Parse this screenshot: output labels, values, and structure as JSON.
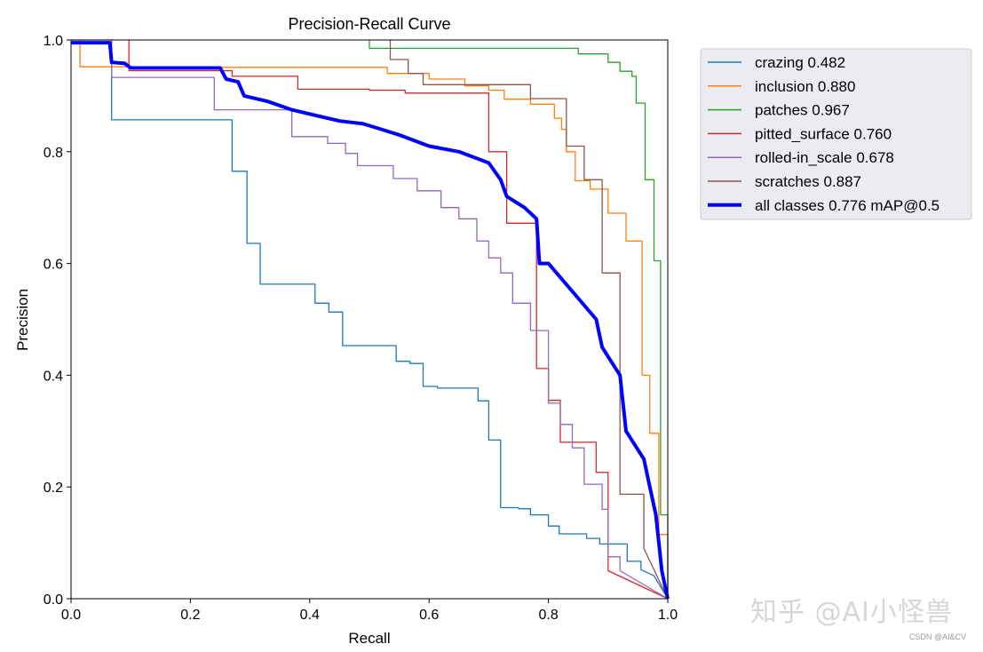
{
  "chart_data": {
    "type": "line",
    "title": "Precision-Recall Curve",
    "xlabel": "Recall",
    "ylabel": "Precision",
    "xlim": [
      0.0,
      1.0
    ],
    "ylim": [
      0.0,
      1.0
    ],
    "xticks": [
      "0.0",
      "0.2",
      "0.4",
      "0.6",
      "0.8",
      "1.0"
    ],
    "yticks": [
      "0.0",
      "0.2",
      "0.4",
      "0.6",
      "0.8",
      "1.0"
    ],
    "grid": false,
    "legend_position": "outside-right-top",
    "series": [
      {
        "name": "crazing 0.482",
        "color": "#1f77b4",
        "points": [
          [
            0,
            1.0
          ],
          [
            0.068,
            1.0
          ],
          [
            0.068,
            0.857
          ],
          [
            0.27,
            0.857
          ],
          [
            0.27,
            0.765
          ],
          [
            0.295,
            0.765
          ],
          [
            0.295,
            0.636
          ],
          [
            0.317,
            0.636
          ],
          [
            0.317,
            0.563
          ],
          [
            0.409,
            0.563
          ],
          [
            0.409,
            0.529
          ],
          [
            0.432,
            0.529
          ],
          [
            0.432,
            0.513
          ],
          [
            0.455,
            0.513
          ],
          [
            0.455,
            0.453
          ],
          [
            0.545,
            0.453
          ],
          [
            0.545,
            0.425
          ],
          [
            0.568,
            0.425
          ],
          [
            0.568,
            0.421
          ],
          [
            0.59,
            0.421
          ],
          [
            0.59,
            0.38
          ],
          [
            0.614,
            0.38
          ],
          [
            0.614,
            0.377
          ],
          [
            0.682,
            0.377
          ],
          [
            0.682,
            0.354
          ],
          [
            0.7,
            0.354
          ],
          [
            0.7,
            0.284
          ],
          [
            0.72,
            0.284
          ],
          [
            0.72,
            0.163
          ],
          [
            0.75,
            0.163
          ],
          [
            0.75,
            0.161
          ],
          [
            0.77,
            0.161
          ],
          [
            0.77,
            0.15
          ],
          [
            0.8,
            0.15
          ],
          [
            0.8,
            0.13
          ],
          [
            0.818,
            0.13
          ],
          [
            0.818,
            0.116
          ],
          [
            0.864,
            0.116
          ],
          [
            0.864,
            0.108
          ],
          [
            0.886,
            0.108
          ],
          [
            0.886,
            0.098
          ],
          [
            0.932,
            0.098
          ],
          [
            0.932,
            0.067
          ],
          [
            0.955,
            0.067
          ],
          [
            0.955,
            0.052
          ],
          [
            0.977,
            0.041
          ],
          [
            1.0,
            0.0
          ]
        ]
      },
      {
        "name": "inclusion 0.880",
        "color": "#ff7f0e",
        "points": [
          [
            0.015,
            1.0
          ],
          [
            0.015,
            0.952
          ],
          [
            0.25,
            0.952
          ],
          [
            0.25,
            0.951
          ],
          [
            0.53,
            0.951
          ],
          [
            0.53,
            0.94
          ],
          [
            0.6,
            0.94
          ],
          [
            0.6,
            0.93
          ],
          [
            0.66,
            0.93
          ],
          [
            0.66,
            0.918
          ],
          [
            0.7,
            0.918
          ],
          [
            0.7,
            0.91
          ],
          [
            0.726,
            0.91
          ],
          [
            0.726,
            0.894
          ],
          [
            0.77,
            0.894
          ],
          [
            0.77,
            0.885
          ],
          [
            0.81,
            0.885
          ],
          [
            0.81,
            0.86
          ],
          [
            0.822,
            0.86
          ],
          [
            0.822,
            0.84
          ],
          [
            0.83,
            0.84
          ],
          [
            0.83,
            0.8
          ],
          [
            0.845,
            0.8
          ],
          [
            0.845,
            0.748
          ],
          [
            0.87,
            0.748
          ],
          [
            0.87,
            0.733
          ],
          [
            0.9,
            0.733
          ],
          [
            0.9,
            0.69
          ],
          [
            0.93,
            0.69
          ],
          [
            0.93,
            0.64
          ],
          [
            0.957,
            0.64
          ],
          [
            0.957,
            0.4
          ],
          [
            0.97,
            0.4
          ],
          [
            0.97,
            0.296
          ],
          [
            0.985,
            0.296
          ],
          [
            0.985,
            0.115
          ],
          [
            1.0,
            0.115
          ],
          [
            1.0,
            0.0
          ]
        ]
      },
      {
        "name": "patches 0.967",
        "color": "#2ca02c",
        "points": [
          [
            0.5,
            1.0
          ],
          [
            0.5,
            0.985
          ],
          [
            0.85,
            0.985
          ],
          [
            0.85,
            0.975
          ],
          [
            0.9,
            0.975
          ],
          [
            0.9,
            0.96
          ],
          [
            0.92,
            0.96
          ],
          [
            0.92,
            0.944
          ],
          [
            0.94,
            0.944
          ],
          [
            0.94,
            0.935
          ],
          [
            0.947,
            0.935
          ],
          [
            0.947,
            0.887
          ],
          [
            0.962,
            0.887
          ],
          [
            0.962,
            0.75
          ],
          [
            0.977,
            0.75
          ],
          [
            0.977,
            0.605
          ],
          [
            0.988,
            0.605
          ],
          [
            0.988,
            0.15
          ],
          [
            1.0,
            0.15
          ],
          [
            1.0,
            0.0
          ]
        ]
      },
      {
        "name": "pitted_surface 0.760",
        "color": "#d62728",
        "points": [
          [
            0.097,
            1.0
          ],
          [
            0.097,
            0.945
          ],
          [
            0.27,
            0.945
          ],
          [
            0.27,
            0.935
          ],
          [
            0.38,
            0.935
          ],
          [
            0.38,
            0.912
          ],
          [
            0.5,
            0.912
          ],
          [
            0.5,
            0.91
          ],
          [
            0.56,
            0.91
          ],
          [
            0.56,
            0.905
          ],
          [
            0.7,
            0.905
          ],
          [
            0.7,
            0.8
          ],
          [
            0.73,
            0.8
          ],
          [
            0.73,
            0.672
          ],
          [
            0.78,
            0.672
          ],
          [
            0.78,
            0.412
          ],
          [
            0.8,
            0.412
          ],
          [
            0.8,
            0.355
          ],
          [
            0.82,
            0.355
          ],
          [
            0.82,
            0.28
          ],
          [
            0.88,
            0.28
          ],
          [
            0.88,
            0.226
          ],
          [
            0.9,
            0.226
          ],
          [
            0.9,
            0.05
          ],
          [
            1.0,
            0.0
          ]
        ]
      },
      {
        "name": "rolled-in_scale 0.678",
        "color": "#9467bd",
        "points": [
          [
            0.068,
            1.0
          ],
          [
            0.068,
            0.933
          ],
          [
            0.24,
            0.933
          ],
          [
            0.24,
            0.875
          ],
          [
            0.37,
            0.875
          ],
          [
            0.37,
            0.827
          ],
          [
            0.43,
            0.827
          ],
          [
            0.43,
            0.815
          ],
          [
            0.46,
            0.815
          ],
          [
            0.46,
            0.797
          ],
          [
            0.48,
            0.797
          ],
          [
            0.48,
            0.775
          ],
          [
            0.54,
            0.775
          ],
          [
            0.54,
            0.752
          ],
          [
            0.58,
            0.752
          ],
          [
            0.58,
            0.73
          ],
          [
            0.62,
            0.73
          ],
          [
            0.62,
            0.7
          ],
          [
            0.65,
            0.7
          ],
          [
            0.65,
            0.68
          ],
          [
            0.68,
            0.68
          ],
          [
            0.68,
            0.64
          ],
          [
            0.7,
            0.64
          ],
          [
            0.7,
            0.61
          ],
          [
            0.72,
            0.61
          ],
          [
            0.72,
            0.583
          ],
          [
            0.74,
            0.583
          ],
          [
            0.74,
            0.529
          ],
          [
            0.77,
            0.529
          ],
          [
            0.77,
            0.48
          ],
          [
            0.8,
            0.48
          ],
          [
            0.8,
            0.35
          ],
          [
            0.82,
            0.35
          ],
          [
            0.82,
            0.312
          ],
          [
            0.84,
            0.312
          ],
          [
            0.84,
            0.27
          ],
          [
            0.86,
            0.27
          ],
          [
            0.86,
            0.205
          ],
          [
            0.89,
            0.205
          ],
          [
            0.89,
            0.16
          ],
          [
            0.9,
            0.16
          ],
          [
            0.9,
            0.075
          ],
          [
            0.92,
            0.075
          ],
          [
            0.92,
            0.05
          ],
          [
            1.0,
            0.0
          ]
        ]
      },
      {
        "name": "scratches 0.887",
        "color": "#8c564b",
        "points": [
          [
            0.535,
            1.0
          ],
          [
            0.535,
            0.965
          ],
          [
            0.565,
            0.965
          ],
          [
            0.565,
            0.94
          ],
          [
            0.59,
            0.94
          ],
          [
            0.59,
            0.92
          ],
          [
            0.77,
            0.92
          ],
          [
            0.77,
            0.895
          ],
          [
            0.83,
            0.895
          ],
          [
            0.83,
            0.81
          ],
          [
            0.86,
            0.81
          ],
          [
            0.86,
            0.75
          ],
          [
            0.89,
            0.75
          ],
          [
            0.89,
            0.583
          ],
          [
            0.92,
            0.583
          ],
          [
            0.92,
            0.187
          ],
          [
            0.96,
            0.187
          ],
          [
            0.96,
            0.09
          ],
          [
            1.0,
            0.0
          ]
        ]
      },
      {
        "name": "all classes 0.776 mAP@0.5",
        "color": "#0000ff",
        "bold": true,
        "points": [
          [
            0.0,
            0.995
          ],
          [
            0.065,
            0.995
          ],
          [
            0.068,
            0.96
          ],
          [
            0.09,
            0.958
          ],
          [
            0.1,
            0.95
          ],
          [
            0.25,
            0.95
          ],
          [
            0.26,
            0.93
          ],
          [
            0.28,
            0.925
          ],
          [
            0.29,
            0.9
          ],
          [
            0.33,
            0.89
          ],
          [
            0.37,
            0.875
          ],
          [
            0.41,
            0.865
          ],
          [
            0.45,
            0.855
          ],
          [
            0.49,
            0.85
          ],
          [
            0.52,
            0.84
          ],
          [
            0.55,
            0.83
          ],
          [
            0.6,
            0.81
          ],
          [
            0.65,
            0.8
          ],
          [
            0.7,
            0.78
          ],
          [
            0.72,
            0.75
          ],
          [
            0.73,
            0.72
          ],
          [
            0.76,
            0.7
          ],
          [
            0.78,
            0.68
          ],
          [
            0.785,
            0.6
          ],
          [
            0.8,
            0.6
          ],
          [
            0.84,
            0.55
          ],
          [
            0.88,
            0.5
          ],
          [
            0.89,
            0.45
          ],
          [
            0.92,
            0.4
          ],
          [
            0.93,
            0.3
          ],
          [
            0.96,
            0.25
          ],
          [
            0.97,
            0.2
          ],
          [
            0.98,
            0.15
          ],
          [
            0.99,
            0.05
          ],
          [
            1.0,
            0.0
          ]
        ]
      }
    ]
  },
  "watermark": {
    "text": "知乎 @AI小怪兽",
    "subtext": "CSDN @AI&CV"
  }
}
